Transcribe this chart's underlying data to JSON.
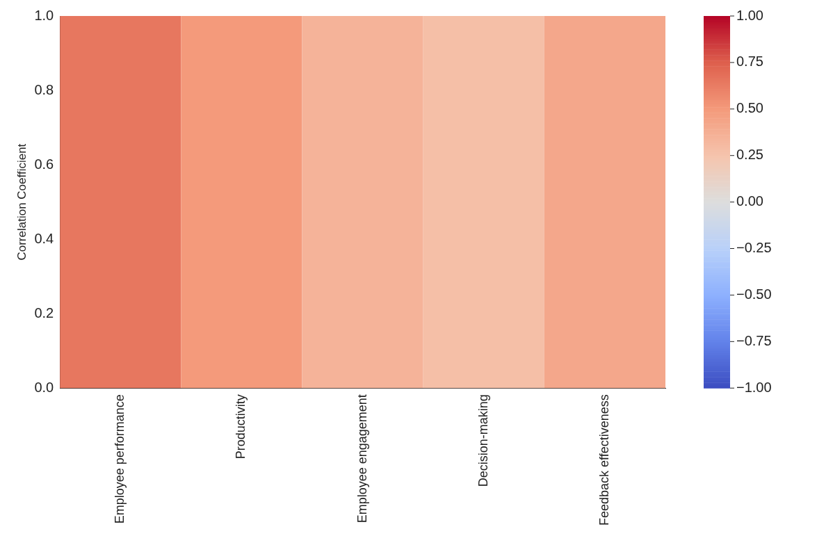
{
  "chart_data": {
    "type": "heatmap",
    "ylabel": "Correlation Coefficient",
    "categories": [
      "Employee performance",
      "Productivity",
      "Employee engagement",
      "Decision-making",
      "Feedback effectiveness"
    ],
    "cells": [
      [
        0.65,
        0.5,
        0.35,
        0.28,
        0.42
      ]
    ],
    "ylim": [
      0,
      1
    ],
    "yticks": [
      {
        "value": 0,
        "label": "0.0"
      },
      {
        "value": 0.2,
        "label": "0.2"
      },
      {
        "value": 0.4,
        "label": "0.4"
      },
      {
        "value": 0.6,
        "label": "0.6"
      },
      {
        "value": 0.8,
        "label": "0.8"
      },
      {
        "value": 1,
        "label": "1.0"
      }
    ],
    "clim": [
      -1,
      1
    ],
    "cticks": [
      {
        "value": -1,
        "label": "−1.00"
      },
      {
        "value": -0.75,
        "label": "−0.75"
      },
      {
        "value": -0.5,
        "label": "−0.50"
      },
      {
        "value": -0.25,
        "label": "−0.25"
      },
      {
        "value": 0,
        "label": "0.00"
      },
      {
        "value": 0.25,
        "label": "0.25"
      },
      {
        "value": 0.5,
        "label": "0.50"
      },
      {
        "value": 0.75,
        "label": "0.75"
      },
      {
        "value": 1,
        "label": "1.00"
      }
    ],
    "grid": false
  }
}
